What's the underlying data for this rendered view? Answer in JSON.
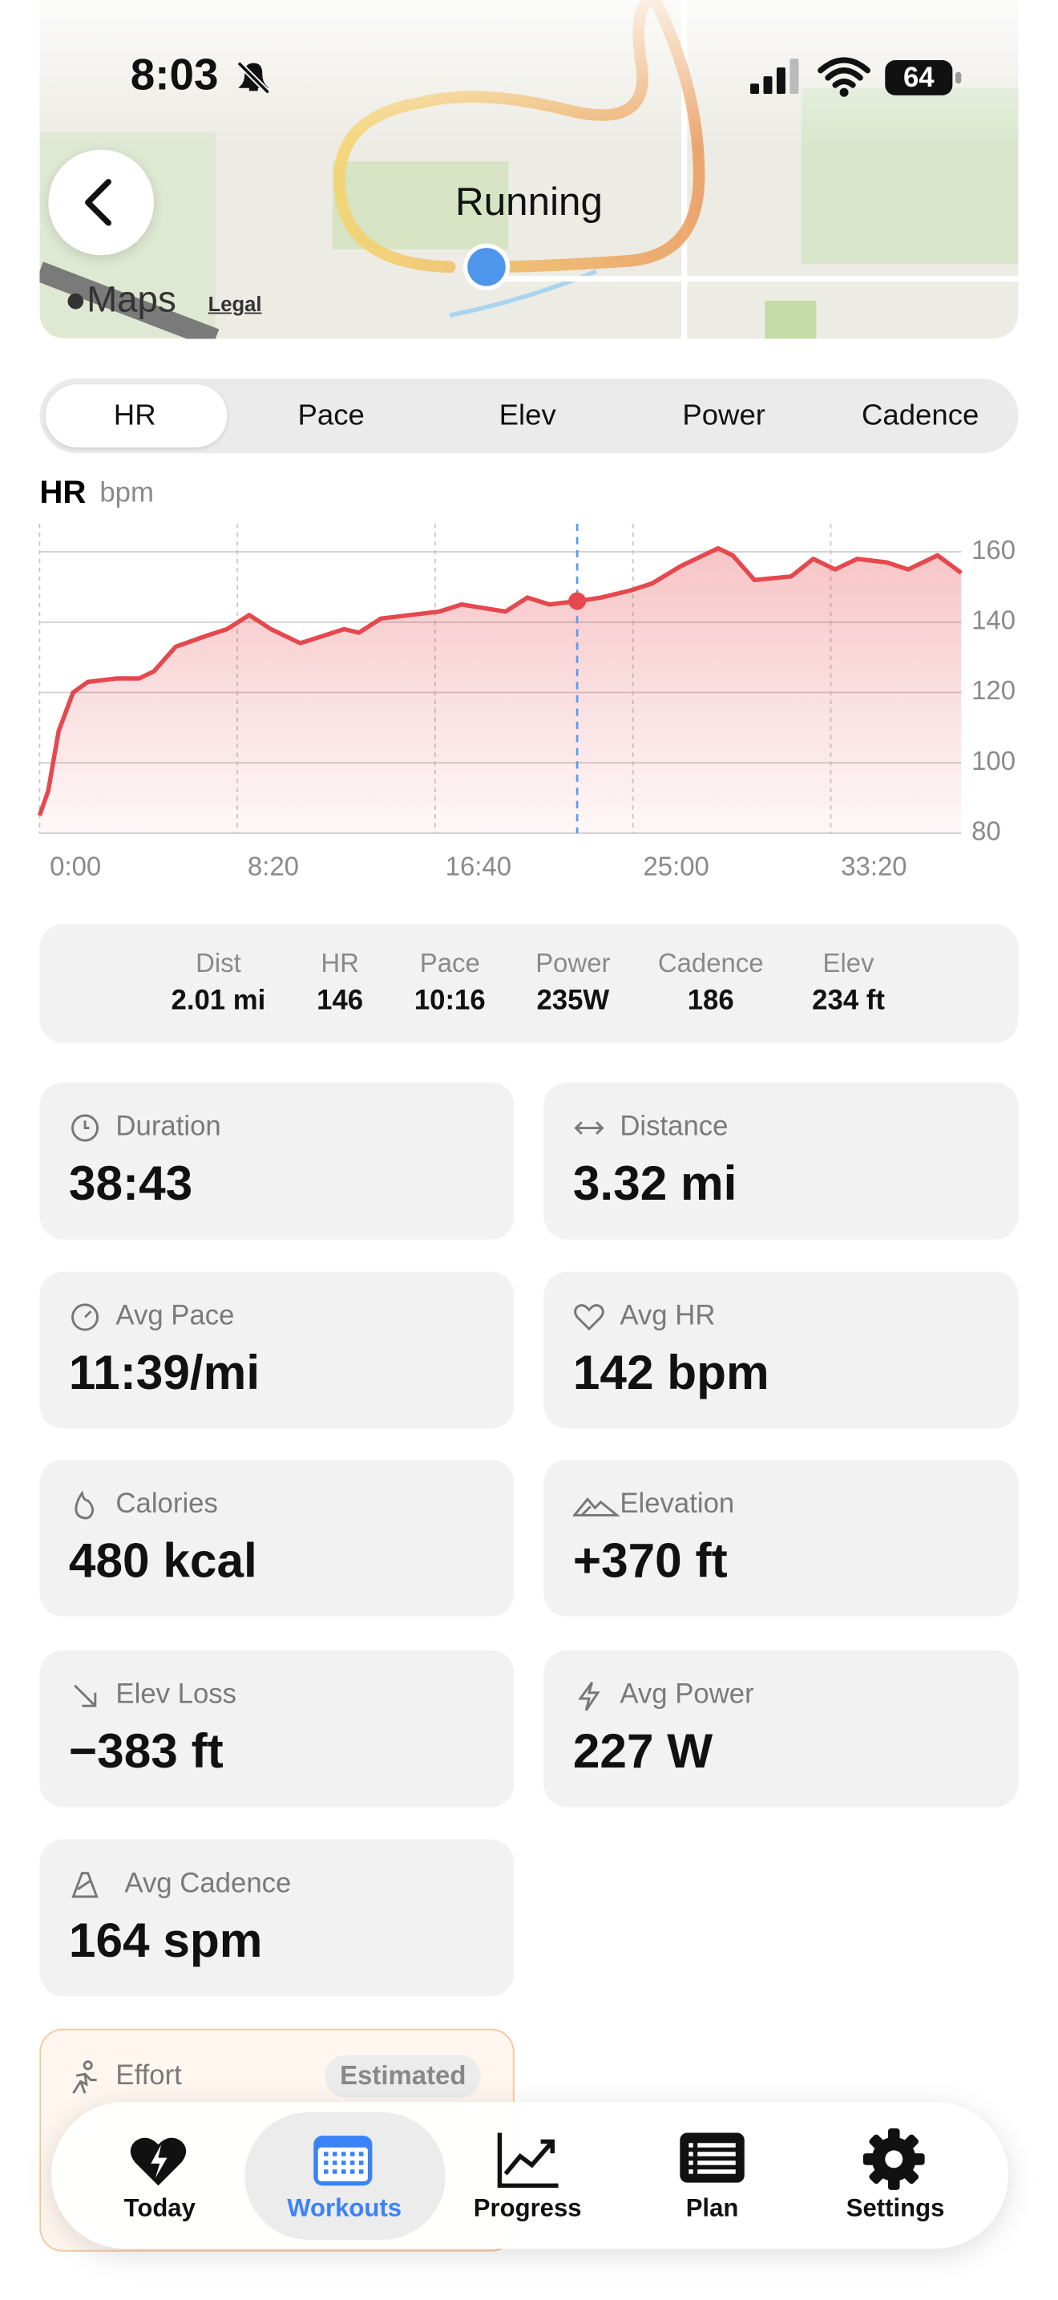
{
  "status_bar": {
    "time": "8:03",
    "battery": "64"
  },
  "map": {
    "brand": "Maps",
    "legal": "Legal"
  },
  "header": {
    "title": "Running"
  },
  "metric_tabs": {
    "items": [
      "HR",
      "Pace",
      "Elev",
      "Power",
      "Cadence"
    ],
    "selected": 0
  },
  "chart": {
    "type": "line",
    "title": "HR",
    "unit": "bpm",
    "color": "#e5484d",
    "x": [
      0,
      22,
      48,
      85,
      122,
      196,
      252,
      289,
      344,
      419,
      474,
      530,
      585,
      659,
      715,
      770,
      807,
      863,
      937,
      1011,
      1067,
      1122,
      1178,
      1233,
      1289,
      1359,
      1419,
      1493,
      1548,
      1622,
      1715,
      1752,
      1807,
      1900,
      1956,
      2011,
      2067,
      2141,
      2196,
      2270,
      2330
    ],
    "values": [
      85,
      92,
      109,
      120,
      123,
      124,
      124,
      126,
      133,
      136,
      138,
      142,
      138,
      134,
      136,
      138,
      137,
      141,
      142,
      143,
      145,
      144,
      143,
      147,
      145,
      146,
      147,
      149,
      151,
      156,
      161,
      159,
      152,
      153,
      158,
      155,
      158,
      157,
      155,
      159,
      154
    ],
    "xlim": [
      0,
      2330
    ],
    "ylim": [
      80,
      168
    ],
    "yticks": [
      80,
      100,
      120,
      140,
      160
    ],
    "xticks": [
      {
        "value": 0,
        "label": "0:00"
      },
      {
        "value": 500,
        "label": "8:20"
      },
      {
        "value": 1000,
        "label": "16:40"
      },
      {
        "value": 1500,
        "label": "25:00"
      },
      {
        "value": 2000,
        "label": "33:20"
      }
    ],
    "cursor": {
      "x": 1359,
      "value": 146
    },
    "grid": true
  },
  "summary": [
    {
      "label": "Dist",
      "value": "2.01 mi"
    },
    {
      "label": "HR",
      "value": "146"
    },
    {
      "label": "Pace",
      "value": "10:16"
    },
    {
      "label": "Power",
      "value": "235W"
    },
    {
      "label": "Cadence",
      "value": "186"
    },
    {
      "label": "Elev",
      "value": "234 ft"
    }
  ],
  "stats": [
    {
      "label": "Duration",
      "value": "38:43"
    },
    {
      "label": "Distance",
      "value": "3.32 mi"
    },
    {
      "label": "Avg Pace",
      "value": "11:39/mi"
    },
    {
      "label": "Avg HR",
      "value": "142 bpm"
    },
    {
      "label": "Calories",
      "value": "480 kcal"
    },
    {
      "label": "Elevation",
      "value": "+370 ft"
    },
    {
      "label": "Elev Loss",
      "value": "−383 ft"
    },
    {
      "label": "Avg Power",
      "value": "227 W"
    },
    {
      "label": "Avg Cadence",
      "value": "164 spm"
    }
  ],
  "effort": {
    "label": "Effort",
    "badge": "Estimated"
  },
  "tab_bar": {
    "items": [
      "Today",
      "Workouts",
      "Progress",
      "Plan",
      "Settings"
    ],
    "selected": 1
  }
}
